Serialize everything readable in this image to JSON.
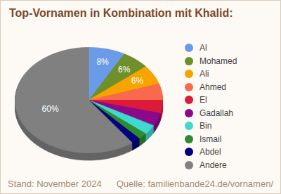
{
  "chart_data": {
    "type": "pie",
    "title": "Top-Vornamen in Kombination mit Khalid:",
    "categories": [
      "Al",
      "Mohamed",
      "Ali",
      "Ahmed",
      "El",
      "Gadallah",
      "Bin",
      "Ismail",
      "Abdel",
      "Andere"
    ],
    "values": [
      8,
      6,
      6,
      5,
      4,
      4,
      3,
      2,
      2,
      60
    ],
    "value_labels": [
      "8%",
      "6%",
      "6%",
      null,
      null,
      null,
      null,
      null,
      null,
      "60%"
    ],
    "colors": [
      "#6a9be8",
      "#6f8f2a",
      "#f7a400",
      "#f96a4c",
      "#dc1a3a",
      "#8a0a8a",
      "#40d9d0",
      "#2e8b2e",
      "#000080",
      "#808080"
    ],
    "data_labels": true,
    "legend": "right",
    "tick_labels": false,
    "annotations": [
      "Stand: November 2024",
      "Quelle: familienbande24.de/vornamen/"
    ]
  }
}
